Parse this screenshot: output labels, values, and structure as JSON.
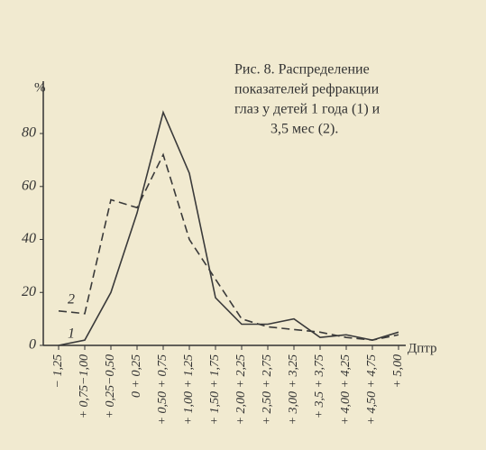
{
  "chart_data": {
    "type": "line",
    "title_lines": [
      "Рис. 8. Распределение",
      "показателей рефракции",
      "глаз у детей 1 года (1) и",
      "3,5 мес (2)."
    ],
    "y_label": "%",
    "x_label": "Дптр",
    "categories": [
      "− 1,25",
      "+ 0,75−1,00",
      "+ 0,25−0,50",
      "0 + 0,25",
      "+ 0,50 + 0,75",
      "+ 1,00 + 1,25",
      "+ 1,50 + 1,75",
      "+ 2,00 + 2,25",
      "+ 2,50 + 2,75",
      "+ 3,00 + 3,25",
      "+ 3,5 + 3,75",
      "+ 4,00 + 4,25",
      "+ 4,50 + 4,75",
      "+ 5,00"
    ],
    "series": [
      {
        "name": "1",
        "color": "#3a3a3a",
        "dashed": false,
        "values": [
          0,
          2,
          20,
          50,
          88,
          65,
          18,
          8,
          8,
          10,
          3,
          4,
          2,
          5
        ]
      },
      {
        "name": "2",
        "color": "#3a3a3a",
        "dashed": true,
        "values": [
          13,
          12,
          55,
          52,
          72,
          40,
          25,
          10,
          7,
          6,
          5,
          3,
          2,
          4
        ]
      }
    ],
    "ylim": [
      0,
      95
    ],
    "yticks": [
      0,
      20,
      40,
      60,
      80
    ]
  }
}
